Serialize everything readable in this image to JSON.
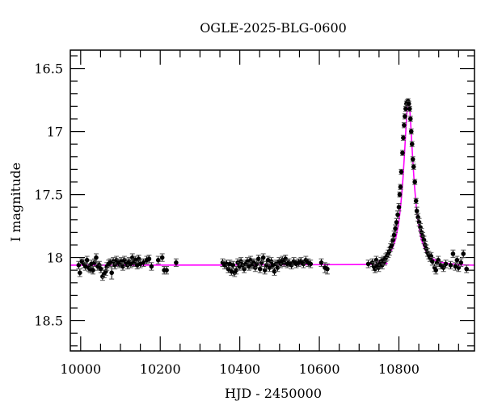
{
  "chart_data": {
    "type": "scatter",
    "title": "OGLE-2025-BLG-0600",
    "xlabel": "HJD - 2450000",
    "ylabel": "I magnitude",
    "xlim": [
      9974,
      10990
    ],
    "ylim": [
      18.74,
      16.355
    ],
    "y_inverted": true,
    "x_ticks": [
      10000,
      10200,
      10400,
      10600,
      10800
    ],
    "x_tick_labels": [
      "10000",
      "10200",
      "10400",
      "10600",
      "10800"
    ],
    "y_ticks": [
      16.5,
      17,
      17.5,
      18,
      18.5
    ],
    "y_tick_labels": [
      "16.5",
      "17",
      "17.5",
      "18",
      "18.5"
    ],
    "x_minor_step": 50,
    "y_minor_step": 0.1,
    "grid": false,
    "colors": {
      "data": "#000000",
      "model": "#ff00ff"
    },
    "data": [
      [
        9995,
        18.06,
        0.03
      ],
      [
        9998,
        18.12,
        0.03
      ],
      [
        10003,
        18.03,
        0.02
      ],
      [
        10008,
        18.05,
        0.03
      ],
      [
        10012,
        18.07,
        0.03
      ],
      [
        10016,
        18.02,
        0.03
      ],
      [
        10020,
        18.08,
        0.03
      ],
      [
        10024,
        18.09,
        0.03
      ],
      [
        10027,
        18.05,
        0.03
      ],
      [
        10031,
        18.1,
        0.03
      ],
      [
        10035,
        18.04,
        0.03
      ],
      [
        10039,
        18.0,
        0.03
      ],
      [
        10043,
        18.07,
        0.03
      ],
      [
        10047,
        18.06,
        0.03
      ],
      [
        10051,
        18.09,
        0.03
      ],
      [
        10055,
        18.15,
        0.03
      ],
      [
        10059,
        18.13,
        0.03
      ],
      [
        10063,
        18.11,
        0.03
      ],
      [
        10066,
        18.07,
        0.03
      ],
      [
        10070,
        18.05,
        0.03
      ],
      [
        10074,
        18.04,
        0.03
      ],
      [
        10078,
        18.12,
        0.05
      ],
      [
        10082,
        18.03,
        0.03
      ],
      [
        10086,
        18.06,
        0.03
      ],
      [
        10090,
        18.02,
        0.03
      ],
      [
        10094,
        18.04,
        0.03
      ],
      [
        10098,
        18.05,
        0.03
      ],
      [
        10102,
        18.03,
        0.03
      ],
      [
        10106,
        18.07,
        0.03
      ],
      [
        10110,
        18.02,
        0.03
      ],
      [
        10114,
        18.04,
        0.03
      ],
      [
        10118,
        18.06,
        0.03
      ],
      [
        10122,
        18.03,
        0.03
      ],
      [
        10126,
        18.05,
        0.03
      ],
      [
        10130,
        18.0,
        0.03
      ],
      [
        10134,
        18.04,
        0.03
      ],
      [
        10138,
        18.02,
        0.03
      ],
      [
        10142,
        18.06,
        0.03
      ],
      [
        10146,
        18.01,
        0.03
      ],
      [
        10150,
        18.05,
        0.03
      ],
      [
        10158,
        18.04,
        0.03
      ],
      [
        10166,
        18.02,
        0.03
      ],
      [
        10172,
        18.01,
        0.03
      ],
      [
        10178,
        18.07,
        0.03
      ],
      [
        10195,
        18.02,
        0.03
      ],
      [
        10205,
        18.0,
        0.03
      ],
      [
        10210,
        18.1,
        0.03
      ],
      [
        10216,
        18.1,
        0.03
      ],
      [
        10240,
        18.04,
        0.03
      ],
      [
        10357,
        18.04,
        0.03
      ],
      [
        10362,
        18.06,
        0.03
      ],
      [
        10367,
        18.05,
        0.03
      ],
      [
        10371,
        18.09,
        0.03
      ],
      [
        10375,
        18.05,
        0.03
      ],
      [
        10379,
        18.11,
        0.03
      ],
      [
        10383,
        18.06,
        0.03
      ],
      [
        10387,
        18.12,
        0.03
      ],
      [
        10391,
        18.1,
        0.03
      ],
      [
        10395,
        18.04,
        0.03
      ],
      [
        10399,
        18.07,
        0.03
      ],
      [
        10403,
        18.03,
        0.03
      ],
      [
        10407,
        18.06,
        0.03
      ],
      [
        10411,
        18.09,
        0.03
      ],
      [
        10415,
        18.05,
        0.03
      ],
      [
        10419,
        18.03,
        0.03
      ],
      [
        10423,
        18.07,
        0.03
      ],
      [
        10427,
        18.02,
        0.03
      ],
      [
        10431,
        18.06,
        0.03
      ],
      [
        10435,
        18.04,
        0.03
      ],
      [
        10439,
        18.08,
        0.03
      ],
      [
        10443,
        18.05,
        0.03
      ],
      [
        10447,
        18.01,
        0.03
      ],
      [
        10451,
        18.09,
        0.03
      ],
      [
        10455,
        18.04,
        0.03
      ],
      [
        10459,
        18.0,
        0.03
      ],
      [
        10463,
        18.1,
        0.03
      ],
      [
        10467,
        18.06,
        0.03
      ],
      [
        10471,
        18.02,
        0.03
      ],
      [
        10475,
        18.08,
        0.03
      ],
      [
        10479,
        18.03,
        0.03
      ],
      [
        10483,
        18.06,
        0.03
      ],
      [
        10487,
        18.11,
        0.03
      ],
      [
        10491,
        18.05,
        0.03
      ],
      [
        10495,
        18.08,
        0.03
      ],
      [
        10499,
        18.03,
        0.03
      ],
      [
        10503,
        18.05,
        0.03
      ],
      [
        10507,
        18.02,
        0.03
      ],
      [
        10511,
        18.04,
        0.03
      ],
      [
        10515,
        18.01,
        0.03
      ],
      [
        10519,
        18.05,
        0.03
      ],
      [
        10524,
        18.04,
        0.03
      ],
      [
        10530,
        18.06,
        0.03
      ],
      [
        10536,
        18.03,
        0.03
      ],
      [
        10542,
        18.05,
        0.03
      ],
      [
        10548,
        18.04,
        0.03
      ],
      [
        10554,
        18.03,
        0.03
      ],
      [
        10560,
        18.05,
        0.03
      ],
      [
        10566,
        18.02,
        0.03
      ],
      [
        10572,
        18.04,
        0.03
      ],
      [
        10578,
        18.05,
        0.03
      ],
      [
        10605,
        18.04,
        0.03
      ],
      [
        10614,
        18.08,
        0.04
      ],
      [
        10620,
        18.09,
        0.04
      ],
      [
        10723,
        18.05,
        0.03
      ],
      [
        10733,
        18.04,
        0.03
      ],
      [
        10737,
        18.07,
        0.03
      ],
      [
        10740,
        18.09,
        0.03
      ],
      [
        10743,
        18.02,
        0.03
      ],
      [
        10746,
        18.06,
        0.03
      ],
      [
        10749,
        18.08,
        0.03
      ],
      [
        10752,
        18.05,
        0.03
      ],
      [
        10755,
        18.03,
        0.03
      ],
      [
        10758,
        18.06,
        0.03
      ],
      [
        10761,
        18.02,
        0.03
      ],
      [
        10764,
        18.03,
        0.03
      ],
      [
        10767,
        18.0,
        0.03
      ],
      [
        10770,
        17.99,
        0.03
      ],
      [
        10773,
        17.97,
        0.03
      ],
      [
        10776,
        17.95,
        0.03
      ],
      [
        10779,
        17.92,
        0.03
      ],
      [
        10782,
        17.9,
        0.03
      ],
      [
        10785,
        17.86,
        0.03
      ],
      [
        10788,
        17.82,
        0.03
      ],
      [
        10791,
        17.77,
        0.03
      ],
      [
        10794,
        17.72,
        0.03
      ],
      [
        10797,
        17.66,
        0.03
      ],
      [
        10800,
        17.6,
        0.03
      ],
      [
        10802,
        17.5,
        0.02
      ],
      [
        10804,
        17.44,
        0.02
      ],
      [
        10806,
        17.32,
        0.02
      ],
      [
        10809,
        17.17,
        0.02
      ],
      [
        10811,
        17.05,
        0.02
      ],
      [
        10813,
        16.95,
        0.02
      ],
      [
        10815,
        16.88,
        0.02
      ],
      [
        10817,
        16.82,
        0.02
      ],
      [
        10819,
        16.78,
        0.02
      ],
      [
        10821,
        16.77,
        0.02
      ],
      [
        10823,
        16.76,
        0.02
      ],
      [
        10825,
        16.78,
        0.02
      ],
      [
        10827,
        16.82,
        0.02
      ],
      [
        10829,
        16.9,
        0.02
      ],
      [
        10831,
        17.0,
        0.02
      ],
      [
        10833,
        17.1,
        0.02
      ],
      [
        10835,
        17.22,
        0.02
      ],
      [
        10837,
        17.28,
        0.02
      ],
      [
        10840,
        17.4,
        0.02
      ],
      [
        10843,
        17.55,
        0.02
      ],
      [
        10845,
        17.63,
        0.03
      ],
      [
        10848,
        17.68,
        0.03
      ],
      [
        10851,
        17.72,
        0.03
      ],
      [
        10854,
        17.76,
        0.03
      ],
      [
        10857,
        17.8,
        0.03
      ],
      [
        10860,
        17.83,
        0.03
      ],
      [
        10863,
        17.86,
        0.03
      ],
      [
        10866,
        17.9,
        0.03
      ],
      [
        10869,
        17.93,
        0.03
      ],
      [
        10872,
        17.96,
        0.03
      ],
      [
        10875,
        17.98,
        0.03
      ],
      [
        10878,
        18.0,
        0.03
      ],
      [
        10881,
        17.99,
        0.03
      ],
      [
        10884,
        18.03,
        0.03
      ],
      [
        10890,
        18.08,
        0.03
      ],
      [
        10893,
        18.1,
        0.03
      ],
      [
        10896,
        18.04,
        0.03
      ],
      [
        10899,
        18.02,
        0.03
      ],
      [
        10905,
        18.06,
        0.03
      ],
      [
        10912,
        18.08,
        0.03
      ],
      [
        10918,
        18.05,
        0.03
      ],
      [
        10930,
        18.06,
        0.03
      ],
      [
        10936,
        17.97,
        0.03
      ],
      [
        10942,
        18.07,
        0.03
      ],
      [
        10946,
        18.02,
        0.03
      ],
      [
        10950,
        18.08,
        0.03
      ],
      [
        10956,
        18.04,
        0.03
      ],
      [
        10962,
        17.97,
        0.03
      ],
      [
        10970,
        18.09,
        0.03
      ]
    ],
    "model": [
      [
        9974,
        18.06
      ],
      [
        10700,
        18.055
      ],
      [
        10750,
        18.03
      ],
      [
        10770,
        17.99
      ],
      [
        10780,
        17.95
      ],
      [
        10790,
        17.87
      ],
      [
        10795,
        17.8
      ],
      [
        10800,
        17.71
      ],
      [
        10805,
        17.57
      ],
      [
        10810,
        17.38
      ],
      [
        10814,
        17.18
      ],
      [
        10818,
        16.96
      ],
      [
        10821,
        16.81
      ],
      [
        10824,
        16.75
      ],
      [
        10827,
        16.81
      ],
      [
        10830,
        16.96
      ],
      [
        10834,
        17.18
      ],
      [
        10838,
        17.38
      ],
      [
        10843,
        17.57
      ],
      [
        10848,
        17.71
      ],
      [
        10853,
        17.8
      ],
      [
        10858,
        17.87
      ],
      [
        10868,
        17.95
      ],
      [
        10878,
        17.99
      ],
      [
        10898,
        18.03
      ],
      [
        10948,
        18.055
      ],
      [
        10990,
        18.06
      ]
    ]
  }
}
